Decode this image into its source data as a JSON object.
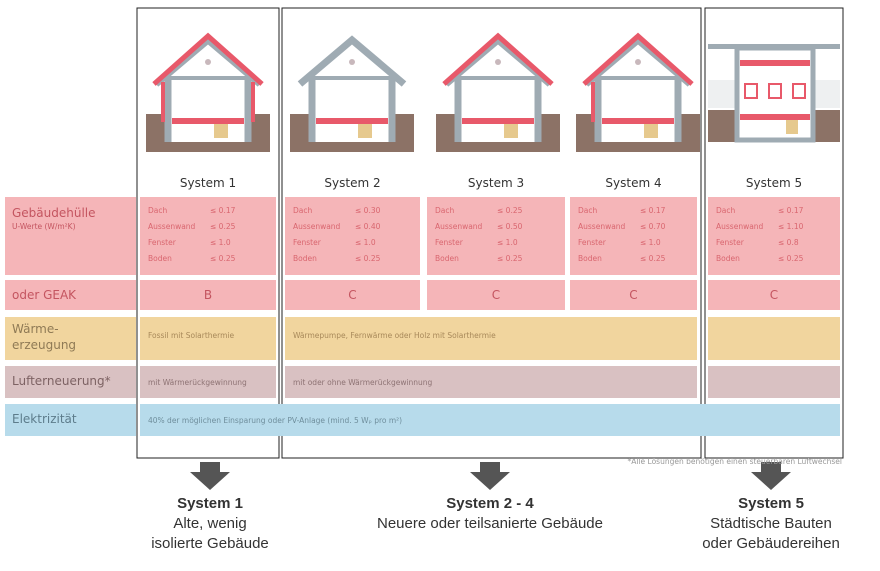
{
  "rows": {
    "envelope": {
      "label": "Gebäudehülle",
      "note": "U-Werte (W/m²K)"
    },
    "geak": {
      "label": "oder GEAK"
    },
    "heating": {
      "label_lines": [
        "Wärme-",
        "erzeugung"
      ]
    },
    "ventilation": {
      "label": "Lufterneuerung*"
    },
    "electricity": {
      "label": "Elektrizität"
    }
  },
  "systems": [
    {
      "name": "System 1",
      "envelope": [
        {
          "part": "Dach",
          "value": "≤ 0.17"
        },
        {
          "part": "Aussenwand",
          "value": "≤ 0.25"
        },
        {
          "part": "Fenster",
          "value": "≤ 1.0"
        },
        {
          "part": "Boden",
          "value": "≤ 0.25"
        }
      ],
      "geak": "B"
    },
    {
      "name": "System 2",
      "envelope": [
        {
          "part": "Dach",
          "value": "≤ 0.30"
        },
        {
          "part": "Aussenwand",
          "value": "≤ 0.40"
        },
        {
          "part": "Fenster",
          "value": "≤ 1.0"
        },
        {
          "part": "Boden",
          "value": "≤ 0.25"
        }
      ],
      "geak": "C"
    },
    {
      "name": "System 3",
      "envelope": [
        {
          "part": "Dach",
          "value": "≤ 0.25"
        },
        {
          "part": "Aussenwand",
          "value": "≤ 0.50"
        },
        {
          "part": "Fenster",
          "value": "≤ 1.0"
        },
        {
          "part": "Boden",
          "value": "≤ 0.25"
        }
      ],
      "geak": "C"
    },
    {
      "name": "System 4",
      "envelope": [
        {
          "part": "Dach",
          "value": "≤ 0.17"
        },
        {
          "part": "Aussenwand",
          "value": "≤ 0.70"
        },
        {
          "part": "Fenster",
          "value": "≤ 1.0"
        },
        {
          "part": "Boden",
          "value": "≤ 0.25"
        }
      ],
      "geak": "C"
    },
    {
      "name": "System 5",
      "envelope": [
        {
          "part": "Dach",
          "value": "≤ 0.17"
        },
        {
          "part": "Aussenwand",
          "value": "≤ 1.10"
        },
        {
          "part": "Fenster",
          "value": "≤ 0.8"
        },
        {
          "part": "Boden",
          "value": "≤ 0.25"
        }
      ],
      "geak": "C"
    }
  ],
  "heating": [
    "Fossil mit Solarthermie",
    "Wärmepumpe, Fernwärme oder Holz mit Solarthermie"
  ],
  "ventilation": [
    "mit Wärmerückgewinnung",
    "mit oder ohne Wärmerückgewinnung"
  ],
  "electricity": "40% der möglichen Einsparung oder PV-Anlage (mind. 5 Wₚ pro m²)",
  "footnote": "*Alle Lösungen benötigen einen steuerbaren Luftwechsel",
  "groups": [
    {
      "title": "System 1",
      "lines": [
        "Alte, wenig",
        "isolierte Gebäude"
      ]
    },
    {
      "title": "System 2 - 4",
      "lines": [
        "Neuere oder teilsanierte Gebäude"
      ]
    },
    {
      "title": "System 5",
      "lines": [
        "Städtische Bauten",
        "oder Gebäudereihen"
      ]
    }
  ]
}
